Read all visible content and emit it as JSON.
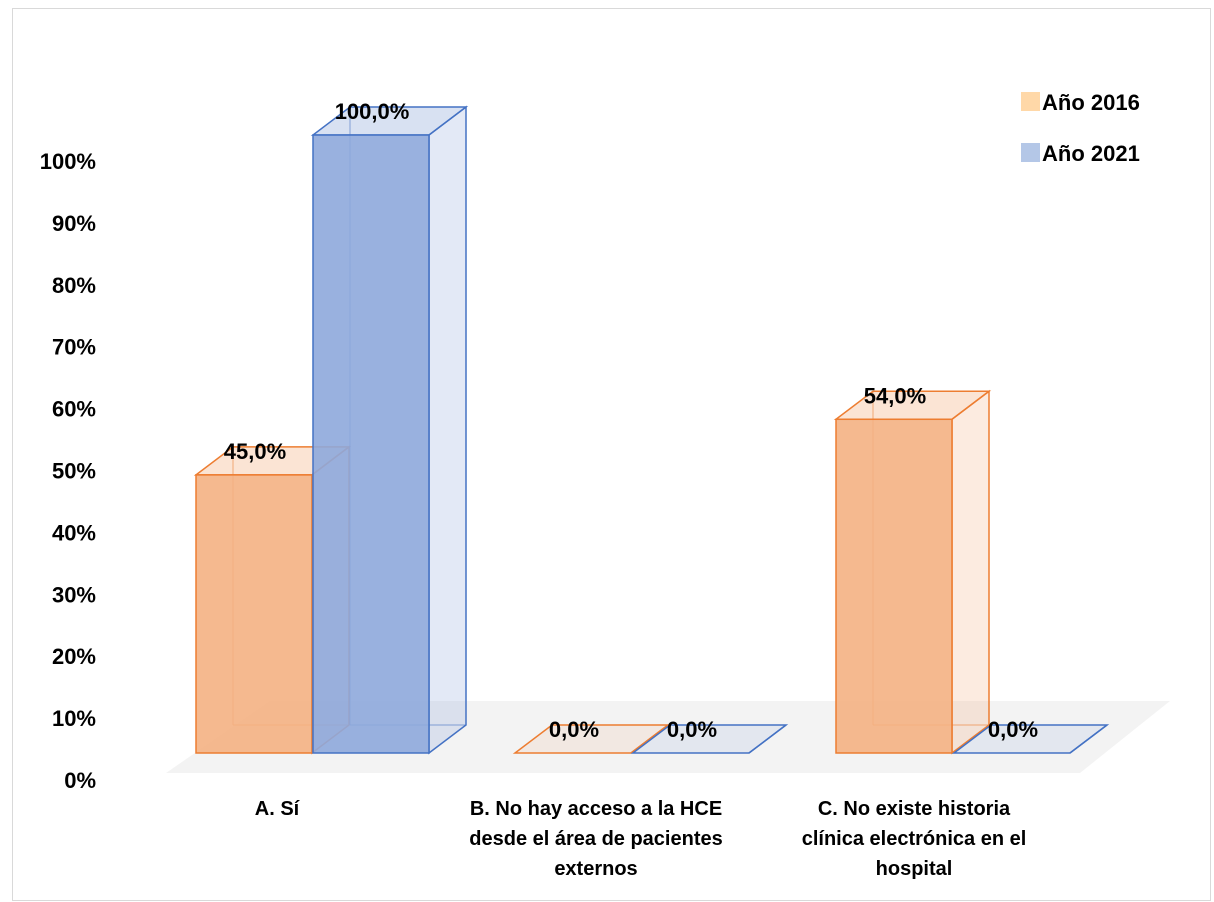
{
  "chart_data": {
    "type": "bar",
    "title": "",
    "xlabel": "",
    "ylabel": "",
    "ylim": [
      0,
      100
    ],
    "y_ticks": [
      "0%",
      "10%",
      "20%",
      "30%",
      "40%",
      "50%",
      "60%",
      "70%",
      "80%",
      "90%",
      "100%"
    ],
    "categories": [
      [
        "A. Sí"
      ],
      [
        "B. No hay acceso a la HCE",
        "desde el área de pacientes",
        "externos"
      ],
      [
        "C. No existe historia",
        "clínica electrónica en el",
        "hospital"
      ]
    ],
    "series": [
      {
        "name": "Año 2016",
        "values": [
          45.0,
          0.0,
          54.0
        ],
        "labels": [
          "45,0%",
          "0,0%",
          "54,0%"
        ],
        "color": "#F4B183",
        "stroke": "#ED7D31"
      },
      {
        "name": "Año 2021",
        "values": [
          100.0,
          0.0,
          0.0
        ],
        "labels": [
          "100,0%",
          "0,0%",
          "0,0%"
        ],
        "color": "#8EA9DB",
        "stroke": "#4472C4"
      }
    ],
    "legend": "top-right",
    "grid": false,
    "style": "3d-clustered-column"
  }
}
